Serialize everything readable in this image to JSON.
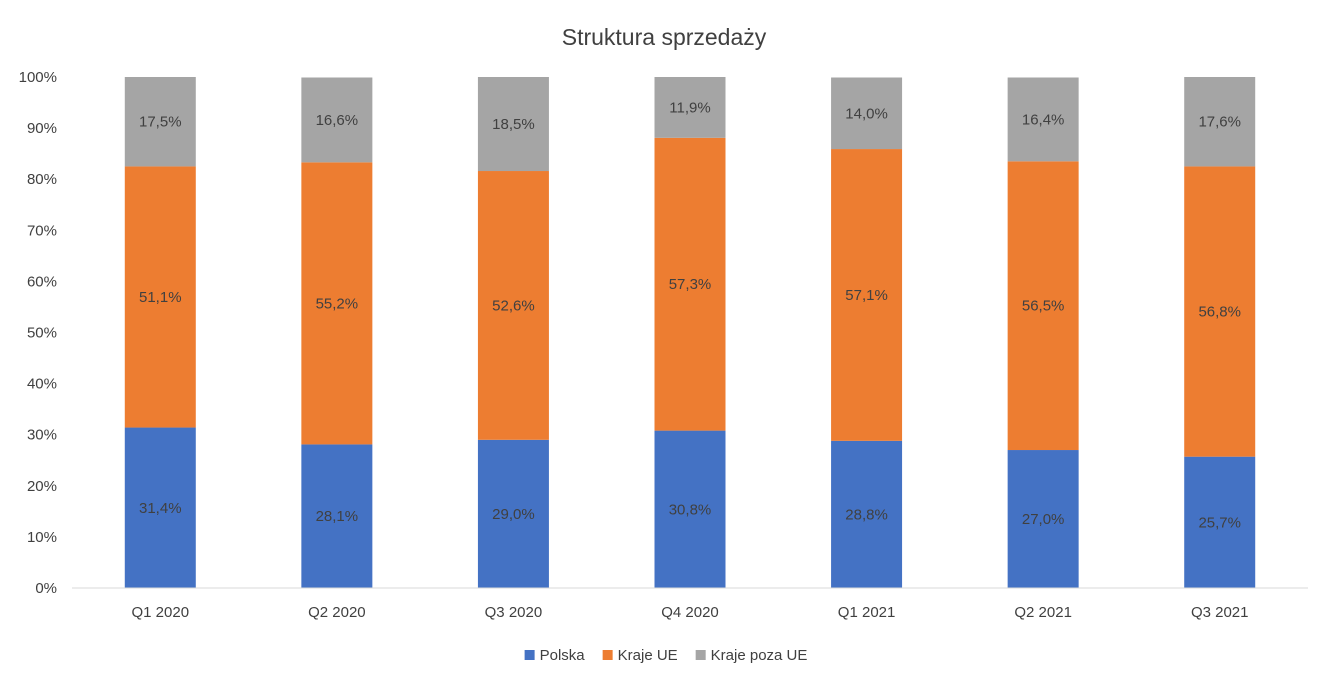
{
  "chart_data": {
    "type": "bar",
    "stacked": true,
    "title": "Struktura sprzedaży",
    "xlabel": "",
    "ylabel": "",
    "ylim": [
      0,
      100
    ],
    "ytick_labels": [
      "0%",
      "10%",
      "20%",
      "30%",
      "40%",
      "50%",
      "60%",
      "70%",
      "80%",
      "90%",
      "100%"
    ],
    "categories": [
      "Q1 2020",
      "Q2 2020",
      "Q3 2020",
      "Q4 2020",
      "Q1 2021",
      "Q2 2021",
      "Q3 2021"
    ],
    "series": [
      {
        "name": "Polska",
        "color": "#4472C4",
        "values": [
          31.4,
          28.1,
          29.0,
          30.8,
          28.8,
          27.0,
          25.7
        ],
        "labels": [
          "31,4%",
          "28,1%",
          "29,0%",
          "30,8%",
          "28,8%",
          "27,0%",
          "25,7%"
        ]
      },
      {
        "name": "Kraje UE",
        "color": "#ED7D31",
        "values": [
          51.1,
          55.2,
          52.6,
          57.3,
          57.1,
          56.5,
          56.8
        ],
        "labels": [
          "51,1%",
          "55,2%",
          "52,6%",
          "57,3%",
          "57,1%",
          "56,5%",
          "56,8%"
        ]
      },
      {
        "name": "Kraje poza UE",
        "color": "#A5A5A5",
        "values": [
          17.5,
          16.6,
          18.5,
          11.9,
          14.0,
          16.4,
          17.6
        ],
        "labels": [
          "17,5%",
          "16,6%",
          "18,5%",
          "11,9%",
          "14,0%",
          "16,4%",
          "17,6%"
        ]
      }
    ],
    "grid": false,
    "legend": "bottom"
  }
}
